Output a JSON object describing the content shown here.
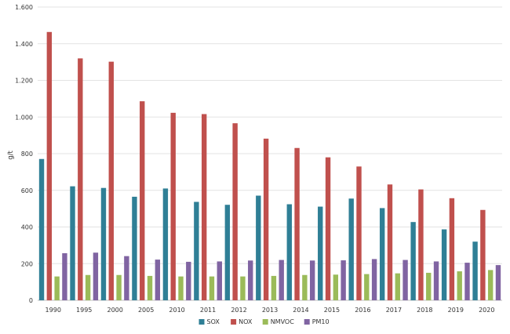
{
  "chart_data": {
    "type": "bar",
    "ylabel": "g/t",
    "ylim": [
      0,
      1600
    ],
    "yticks": [
      0,
      200,
      400,
      600,
      800,
      1000,
      1200,
      1400,
      1600
    ],
    "ytick_labels": [
      "0",
      "200",
      "400",
      "600",
      "800",
      "1.000",
      "1.200",
      "1.400",
      "1.600"
    ],
    "grid": true,
    "legend_position": "bottom",
    "categories": [
      "1990",
      "1995",
      "2000",
      "2005",
      "2010",
      "2011",
      "2012",
      "2013",
      "2014",
      "2015",
      "2016",
      "2017",
      "2018",
      "2019",
      "2020"
    ],
    "series": [
      {
        "name": "SOX",
        "color": "#2f7f96",
        "values": [
          771,
          622,
          613,
          565,
          610,
          537,
          521,
          571,
          524,
          511,
          555,
          503,
          427,
          387,
          320
        ]
      },
      {
        "name": "NOX",
        "color": "#c0504d",
        "values": [
          1464,
          1320,
          1302,
          1086,
          1023,
          1016,
          966,
          882,
          831,
          780,
          730,
          632,
          605,
          557,
          493
        ]
      },
      {
        "name": "NMVOC",
        "color": "#9bbb59",
        "values": [
          130,
          138,
          138,
          133,
          130,
          130,
          130,
          133,
          138,
          140,
          143,
          147,
          150,
          158,
          165
        ]
      },
      {
        "name": "PM10",
        "color": "#8064a2",
        "values": [
          257,
          260,
          241,
          222,
          210,
          212,
          217,
          220,
          217,
          218,
          225,
          220,
          212,
          205,
          192
        ]
      }
    ]
  }
}
